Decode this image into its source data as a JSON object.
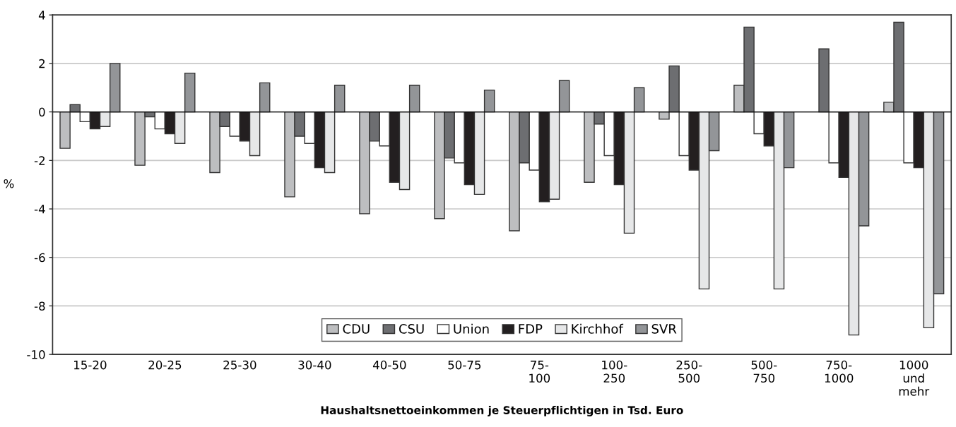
{
  "chart_data": {
    "type": "bar",
    "xlabel": "Haushaltsnettoeinkommen je Steuerpflichtigen in Tsd. Euro",
    "ylabel": "%",
    "categories": [
      "15-20",
      "20-25",
      "25-30",
      "30-40",
      "40-50",
      "50-75",
      "75-\n100",
      "100-\n250",
      "250-\n500",
      "500-\n750",
      "750-\n1000",
      "1000\nund\nmehr"
    ],
    "series": [
      {
        "name": "CDU",
        "color": "#bdbec0",
        "values": [
          -1.5,
          -2.2,
          -2.5,
          -3.5,
          -4.2,
          -4.4,
          -4.9,
          -2.9,
          -0.3,
          1.1,
          null,
          0.4
        ]
      },
      {
        "name": "CSU",
        "color": "#6d6e71",
        "values": [
          0.3,
          -0.2,
          -0.6,
          -1.0,
          -1.2,
          -1.9,
          -2.1,
          -0.5,
          1.9,
          3.5,
          2.6,
          3.7
        ]
      },
      {
        "name": "Union",
        "color": "#ffffff",
        "values": [
          -0.4,
          -0.7,
          -1.0,
          -1.3,
          -1.4,
          -2.1,
          -2.4,
          -1.8,
          -1.8,
          -0.9,
          -2.1,
          -2.1
        ]
      },
      {
        "name": "FDP",
        "color": "#231f20",
        "values": [
          -0.7,
          -0.9,
          -1.2,
          -2.3,
          -2.9,
          -3.0,
          -3.7,
          -3.0,
          -2.4,
          -1.4,
          -2.7,
          -2.3
        ]
      },
      {
        "name": "Kirchhof",
        "color": "#e6e7e8",
        "values": [
          -0.6,
          -1.3,
          -1.8,
          -2.5,
          -3.2,
          -3.4,
          -3.6,
          -5.0,
          -7.3,
          -7.3,
          -9.2,
          -8.9
        ]
      },
      {
        "name": "SVR",
        "color": "#939598",
        "values": [
          2.0,
          1.6,
          1.2,
          1.1,
          1.1,
          0.9,
          1.3,
          1.0,
          -1.6,
          -2.3,
          -4.7,
          -7.5
        ]
      }
    ],
    "ylim": [
      -10,
      4
    ],
    "yticks": [
      -10,
      -8,
      -6,
      -4,
      -2,
      0,
      2,
      4
    ],
    "grid": "y",
    "legend": "bottom"
  }
}
